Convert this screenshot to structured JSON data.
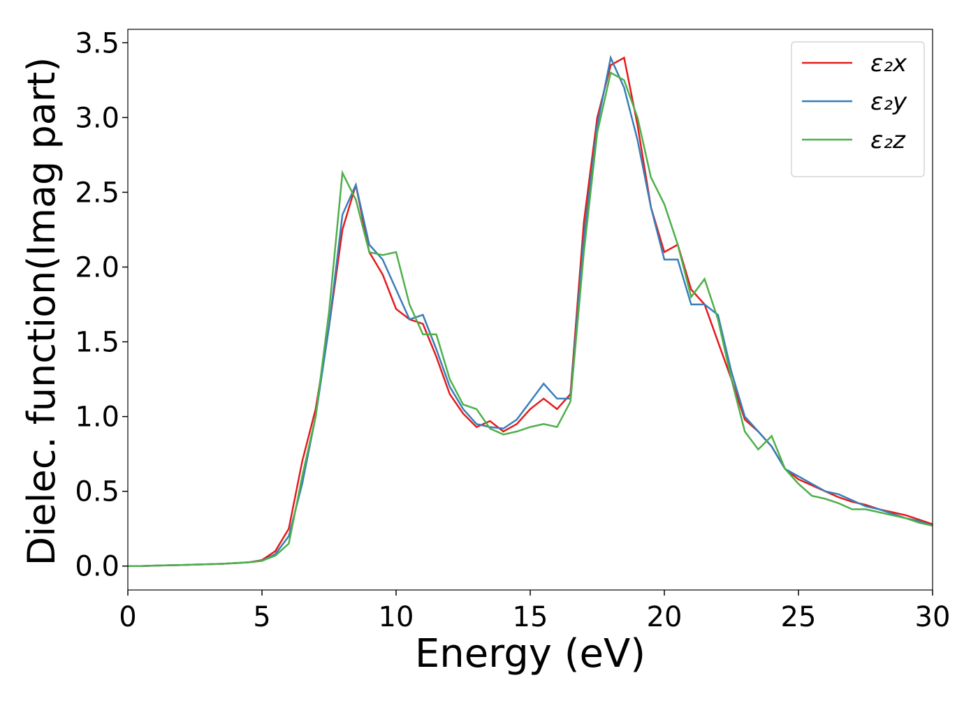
{
  "chart_data": {
    "type": "line",
    "xlabel": "Energy (eV)",
    "ylabel": "Dielec. function(Imag part)",
    "x": [
      0,
      0.5,
      1,
      1.5,
      2,
      2.5,
      3,
      3.5,
      4,
      4.5,
      5,
      5.5,
      6,
      6.5,
      7,
      7.5,
      8,
      8.5,
      9,
      9.5,
      10,
      10.5,
      11,
      11.5,
      12,
      12.5,
      13,
      13.5,
      14,
      14.5,
      15,
      15.5,
      16,
      16.5,
      17,
      17.5,
      18,
      18.5,
      19,
      19.5,
      20,
      20.5,
      21,
      21.5,
      22,
      22.5,
      23,
      23.5,
      24,
      24.5,
      25,
      25.5,
      26,
      26.5,
      27,
      27.5,
      28,
      28.5,
      29,
      29.5,
      30
    ],
    "series": [
      {
        "name": "ε₂x",
        "color": "#e41a1c",
        "values": [
          0,
          0,
          0.003,
          0.005,
          0.007,
          0.01,
          0.012,
          0.015,
          0.02,
          0.025,
          0.04,
          0.1,
          0.25,
          0.7,
          1.05,
          1.6,
          2.25,
          2.55,
          2.1,
          1.95,
          1.72,
          1.65,
          1.62,
          1.4,
          1.15,
          1.02,
          0.93,
          0.97,
          0.9,
          0.95,
          1.05,
          1.12,
          1.05,
          1.15,
          2.3,
          3.0,
          3.35,
          3.4,
          2.95,
          2.4,
          2.1,
          2.15,
          1.85,
          1.75,
          1.5,
          1.25,
          0.98,
          0.9,
          0.8,
          0.65,
          0.58,
          0.54,
          0.5,
          0.46,
          0.43,
          0.41,
          0.38,
          0.36,
          0.34,
          0.31,
          0.28
        ]
      },
      {
        "name": "ε₂y",
        "color": "#377eb8",
        "values": [
          0,
          0,
          0.003,
          0.005,
          0.007,
          0.01,
          0.012,
          0.015,
          0.02,
          0.025,
          0.035,
          0.08,
          0.2,
          0.55,
          1.0,
          1.6,
          2.35,
          2.55,
          2.15,
          2.05,
          1.85,
          1.65,
          1.68,
          1.45,
          1.2,
          1.05,
          0.95,
          0.93,
          0.92,
          0.98,
          1.1,
          1.22,
          1.12,
          1.12,
          2.2,
          2.95,
          3.4,
          3.2,
          2.85,
          2.4,
          2.05,
          2.05,
          1.75,
          1.75,
          1.68,
          1.3,
          1.0,
          0.9,
          0.8,
          0.65,
          0.6,
          0.55,
          0.5,
          0.48,
          0.44,
          0.4,
          0.38,
          0.35,
          0.32,
          0.3,
          0.27
        ]
      },
      {
        "name": "ε₂z",
        "color": "#4daf4a",
        "values": [
          0,
          0,
          0.003,
          0.005,
          0.007,
          0.01,
          0.012,
          0.015,
          0.02,
          0.025,
          0.035,
          0.07,
          0.15,
          0.6,
          1.0,
          1.7,
          2.63,
          2.45,
          2.1,
          2.08,
          2.1,
          1.75,
          1.55,
          1.55,
          1.25,
          1.08,
          1.05,
          0.92,
          0.88,
          0.9,
          0.93,
          0.95,
          0.93,
          1.1,
          2.1,
          2.9,
          3.3,
          3.25,
          3.0,
          2.6,
          2.42,
          2.15,
          1.8,
          1.92,
          1.65,
          1.25,
          0.9,
          0.78,
          0.87,
          0.65,
          0.55,
          0.47,
          0.45,
          0.42,
          0.38,
          0.38,
          0.36,
          0.34,
          0.32,
          0.29,
          0.27
        ]
      }
    ],
    "xlim": [
      0,
      30
    ],
    "xticks": [
      0,
      5,
      10,
      15,
      20,
      25,
      30
    ],
    "ylim": [
      -0.16,
      3.59
    ],
    "yticks": [
      {
        "value": 0,
        "label": "0.0"
      },
      {
        "value": 0.5,
        "label": "0.5"
      },
      {
        "value": 1,
        "label": "1.0"
      },
      {
        "value": 1.5,
        "label": "1.5"
      },
      {
        "value": 2,
        "label": "2.0"
      },
      {
        "value": 2.5,
        "label": "2.5"
      },
      {
        "value": 3,
        "label": "3.0"
      },
      {
        "value": 3.5,
        "label": "3.5"
      }
    ],
    "grid": false,
    "legend": "upper right"
  }
}
